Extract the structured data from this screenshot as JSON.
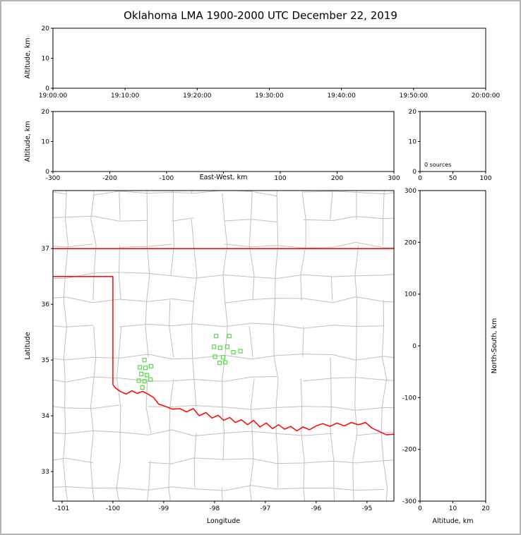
{
  "title": "Oklahoma LMA 1900-2000 UTC December 22, 2019",
  "colors": {
    "background": "#ffffff",
    "outer_border": "#b4b4b4",
    "panel_frame": "#000000",
    "county_lines": "#c0c0c0",
    "state_border": "#ff0000",
    "source_marker": "#55dd44"
  },
  "panels": {
    "time_height": {
      "ylabel": "Altitude, km",
      "yticks": [
        0,
        10,
        20
      ],
      "ytick_labels": [
        "0",
        "10",
        "20"
      ],
      "xtick_labels": [
        "19:00:00",
        "19:10:00",
        "19:20:00",
        "19:30:00",
        "19:40:00",
        "19:50:00",
        "20:00:00"
      ]
    },
    "ew_height": {
      "ylabel": "Altitude, km",
      "xlabel": "East-West, km",
      "yticks": [
        0,
        10,
        20
      ],
      "ytick_labels": [
        "0",
        "10",
        "20"
      ],
      "xticks": [
        -300,
        -200,
        -100,
        0,
        100,
        200,
        300
      ],
      "xtick_labels": [
        "-300",
        "-200",
        "-100",
        "",
        "100",
        "200",
        "300"
      ]
    },
    "alt_histogram": {
      "annotation": "0 sources",
      "yticks": [
        0,
        10,
        20
      ],
      "ytick_labels": [
        "0",
        "10",
        "20"
      ],
      "xticks": [
        0,
        50,
        100
      ],
      "xtick_labels": [
        "0",
        "50",
        "100"
      ]
    },
    "plan_view": {
      "xlabel": "Longitude",
      "ylabel": "Latitude",
      "xticks": [
        -101,
        -100,
        -99,
        -98,
        -97,
        -96,
        -95
      ],
      "xtick_labels": [
        "-101",
        "-100",
        "-99",
        "-98",
        "-97",
        "-96",
        "-95"
      ],
      "yticks": [
        33,
        34,
        35,
        36,
        37
      ],
      "ytick_labels": [
        "33",
        "34",
        "35",
        "36",
        "37"
      ],
      "lon_range": [
        -101.18,
        -94.47
      ],
      "lat_range": [
        32.47,
        38.04
      ]
    },
    "ns_height": {
      "ylabel": "North-South, km",
      "xlabel": "Altitude, km",
      "xticks": [
        0,
        10,
        20
      ],
      "xtick_labels": [
        "0",
        "10",
        "20"
      ],
      "yticks": [
        300,
        200,
        100,
        0,
        -100,
        -200,
        -300
      ],
      "ytick_labels": [
        "300",
        "200",
        "100",
        "0",
        "-100",
        "-200",
        "-300"
      ]
    }
  },
  "chart_data": {
    "type": "scatter",
    "title": "Oklahoma LMA 1900-2000 UTC December 22, 2019",
    "time_range_utc": [
      "19:00:00",
      "20:00:00"
    ],
    "altitude_range_km": [
      0,
      20
    ],
    "ew_range_km": [
      -300,
      300
    ],
    "ns_range_km": [
      -300,
      300
    ],
    "histogram": {
      "annotation": "0 sources",
      "source_count": 0,
      "xlim": [
        0,
        100
      ]
    },
    "time_height_points": [],
    "ew_height_points": [],
    "ns_height_points": [],
    "plan_view": {
      "marker": "open-square",
      "marker_size_px": 5,
      "marker_color": "#55dd44",
      "points_lon_lat": [
        [
          -97.97,
          35.43
        ],
        [
          -97.71,
          35.43
        ],
        [
          -98.01,
          35.24
        ],
        [
          -97.89,
          35.22
        ],
        [
          -97.75,
          35.24
        ],
        [
          -97.63,
          35.14
        ],
        [
          -97.49,
          35.16
        ],
        [
          -97.99,
          35.06
        ],
        [
          -97.83,
          35.05
        ],
        [
          -97.9,
          34.95
        ],
        [
          -97.79,
          34.96
        ],
        [
          -99.38,
          35.0
        ],
        [
          -99.47,
          34.87
        ],
        [
          -99.36,
          34.86
        ],
        [
          -99.25,
          34.89
        ],
        [
          -99.44,
          34.75
        ],
        [
          -99.33,
          34.73
        ],
        [
          -99.49,
          34.63
        ],
        [
          -99.38,
          34.62
        ],
        [
          -99.26,
          34.65
        ],
        [
          -99.42,
          34.51
        ]
      ]
    },
    "map_layers": {
      "state_border_color": "#ff0000",
      "north_border_lat37": [
        [
          -101.3,
          37.0
        ],
        [
          -94.4,
          37.0
        ]
      ],
      "panhandle_border": [
        [
          -101.3,
          36.5
        ],
        [
          -100.0,
          36.5
        ],
        [
          -100.0,
          34.56
        ]
      ],
      "red_river_border": [
        [
          -100.0,
          34.56
        ],
        [
          -99.95,
          34.5
        ],
        [
          -99.86,
          34.44
        ],
        [
          -99.74,
          34.39
        ],
        [
          -99.63,
          34.45
        ],
        [
          -99.52,
          34.4
        ],
        [
          -99.42,
          34.44
        ],
        [
          -99.31,
          34.39
        ],
        [
          -99.2,
          34.33
        ],
        [
          -99.1,
          34.21
        ],
        [
          -98.97,
          34.17
        ],
        [
          -98.83,
          34.12
        ],
        [
          -98.68,
          34.13
        ],
        [
          -98.55,
          34.07
        ],
        [
          -98.42,
          34.13
        ],
        [
          -98.3,
          34.0
        ],
        [
          -98.17,
          34.06
        ],
        [
          -98.05,
          33.96
        ],
        [
          -97.93,
          34.01
        ],
        [
          -97.82,
          33.92
        ],
        [
          -97.7,
          33.97
        ],
        [
          -97.59,
          33.88
        ],
        [
          -97.47,
          33.93
        ],
        [
          -97.35,
          33.84
        ],
        [
          -97.23,
          33.92
        ],
        [
          -97.11,
          33.8
        ],
        [
          -96.98,
          33.87
        ],
        [
          -96.86,
          33.77
        ],
        [
          -96.74,
          33.84
        ],
        [
          -96.62,
          33.76
        ],
        [
          -96.5,
          33.81
        ],
        [
          -96.38,
          33.73
        ],
        [
          -96.26,
          33.8
        ],
        [
          -96.13,
          33.75
        ],
        [
          -96.0,
          33.82
        ],
        [
          -95.87,
          33.86
        ],
        [
          -95.73,
          33.81
        ],
        [
          -95.59,
          33.87
        ],
        [
          -95.45,
          33.82
        ],
        [
          -95.31,
          33.88
        ],
        [
          -95.17,
          33.84
        ],
        [
          -95.03,
          33.88
        ],
        [
          -94.9,
          33.78
        ],
        [
          -94.76,
          33.72
        ],
        [
          -94.62,
          33.66
        ],
        [
          -94.45,
          33.67
        ]
      ],
      "county_grid": {
        "seed": 11,
        "color": "#c0c0c0",
        "lon_start": -101.45,
        "lon_step": 0.52,
        "lat_start": 32.3,
        "lat_step": 0.47,
        "jitter": 0.06,
        "skip": 0.1
      }
    }
  }
}
